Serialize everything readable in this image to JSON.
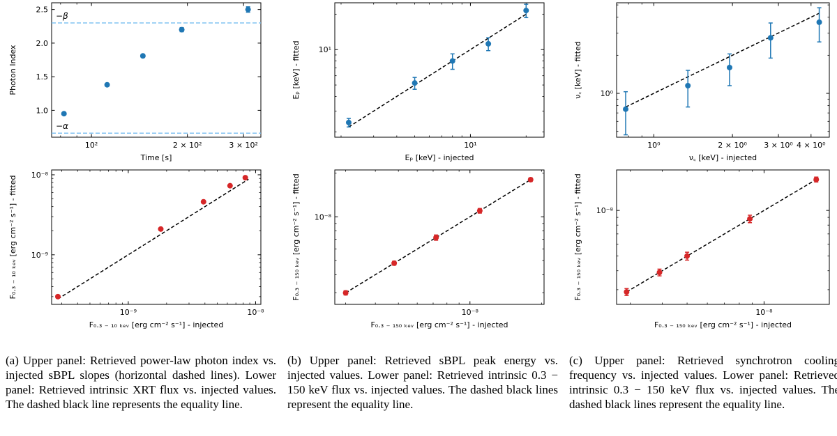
{
  "chart_data": [
    {
      "id": "a-upper",
      "type": "scatter",
      "xscale": "log",
      "yscale": "linear",
      "xlabel": "Time [s]",
      "ylabel": "Photon Index",
      "xlim": [
        75,
        340
      ],
      "ylim": [
        0.6,
        2.6
      ],
      "xticks": [
        {
          "v": 100,
          "t": "10²"
        },
        {
          "v": 200,
          "t": "2 × 10²"
        },
        {
          "v": 300,
          "t": "3 × 10²"
        }
      ],
      "yticks": [
        {
          "v": 1.0,
          "t": "1.0"
        },
        {
          "v": 1.5,
          "t": "1.5"
        },
        {
          "v": 2.0,
          "t": "2.0"
        },
        {
          "v": 2.5,
          "t": "2.5"
        }
      ],
      "color": "#1f77b4",
      "x": [
        82,
        112,
        145,
        192,
        310
      ],
      "y": [
        0.95,
        1.38,
        1.81,
        2.2,
        2.5
      ],
      "yerr": [
        0,
        0.02,
        0.02,
        0.03,
        0.04
      ],
      "hlines": [
        {
          "y": 2.3,
          "label": "−β",
          "color": "#77bdf0"
        },
        {
          "y": 0.66,
          "label": "−α",
          "color": "#77bdf0"
        }
      ]
    },
    {
      "id": "b-upper",
      "type": "scatter",
      "xscale": "log",
      "yscale": "log",
      "xlabel": "Eₚ [keV] - injected",
      "ylabel": "Eₚ [keV] - fitted",
      "xlim": [
        1.85,
        25
      ],
      "ylim": [
        1.8,
        25
      ],
      "xticks": [
        {
          "v": 10,
          "t": "10¹"
        }
      ],
      "yticks": [
        {
          "v": 10,
          "t": "10¹"
        }
      ],
      "color": "#1f77b4",
      "x": [
        2.2,
        5.0,
        8.0,
        12.5,
        20.0
      ],
      "y": [
        2.4,
        5.2,
        8.0,
        11.2,
        21.5
      ],
      "yerr": [
        0.2,
        0.6,
        1.2,
        1.4,
        2.8
      ],
      "line": [
        [
          2.2,
          2.2
        ],
        [
          20.0,
          20.0
        ]
      ]
    },
    {
      "id": "c-upper",
      "type": "scatter",
      "xscale": "log",
      "yscale": "log",
      "xlabel": "ν꜀ [keV] - injected",
      "ylabel": "ν꜀ [keV] - fitted",
      "xlim": [
        0.72,
        4.7
      ],
      "ylim": [
        0.45,
        5.2
      ],
      "xticks": [
        {
          "v": 1.0,
          "t": "10⁰"
        },
        {
          "v": 2.0,
          "t": "2 × 10⁰"
        },
        {
          "v": 3.0,
          "t": "3 × 10⁰"
        },
        {
          "v": 4.0,
          "t": "4 × 10⁰"
        }
      ],
      "yticks": [
        {
          "v": 1.0,
          "t": "10⁰"
        }
      ],
      "color": "#1f77b4",
      "x": [
        0.78,
        1.35,
        1.95,
        2.8,
        4.3
      ],
      "y": [
        0.75,
        1.15,
        1.6,
        2.75,
        3.65
      ],
      "yerr": [
        0.28,
        0.37,
        0.45,
        0.85,
        1.1
      ],
      "line": [
        [
          0.78,
          0.78
        ],
        [
          4.3,
          4.3
        ]
      ]
    },
    {
      "id": "a-lower",
      "type": "scatter",
      "xscale": "log",
      "yscale": "log",
      "xlabel": "F₀.₃ ₋ ₁₀ ₖₑᵥ [erg cm⁻² s⁻¹] - injected",
      "ylabel": "F₀.₃ ₋ ₁₀ ₖₑᵥ [erg cm⁻² s⁻¹] - fitted",
      "xlim": [
        2.5e-10,
        1.1e-08
      ],
      "ylim": [
        2.4e-10,
        1.15e-08
      ],
      "xticks": [
        {
          "v": 1e-09,
          "t": "10⁻⁹"
        },
        {
          "v": 1e-08,
          "t": "10⁻⁸"
        }
      ],
      "yticks": [
        {
          "v": 1e-09,
          "t": "10⁻⁹"
        },
        {
          "v": 1e-08,
          "t": "10⁻⁸"
        }
      ],
      "color": "#d62728",
      "x": [
        2.8e-10,
        1.8e-09,
        3.9e-09,
        6.3e-09,
        8.3e-09
      ],
      "y": [
        3e-10,
        2.1e-09,
        4.6e-09,
        7.3e-09,
        9.2e-09
      ],
      "yerr": [
        0,
        0,
        0,
        0,
        0
      ],
      "line": [
        [
          2.8e-10,
          2.8e-10
        ],
        [
          8.8e-09,
          8.8e-09
        ]
      ]
    },
    {
      "id": "b-lower",
      "type": "scatter",
      "xscale": "log",
      "yscale": "log",
      "xlabel": "F₀.₃ ₋ ₁₅₀ ₖₑᵥ [erg cm⁻² s⁻¹] - injected",
      "ylabel": "F₀.₃ ₋ ₁₅₀ ₖₑᵥ [erg cm⁻² s⁻¹] - fitted",
      "xlim": [
        2.7e-09,
        2.05e-08
      ],
      "ylim": [
        2.5e-09,
        2.1e-08
      ],
      "xticks": [
        {
          "v": 1e-08,
          "t": "10⁻⁸"
        }
      ],
      "yticks": [
        {
          "v": 1e-08,
          "t": "10⁻⁸"
        }
      ],
      "color": "#d62728",
      "x": [
        3e-09,
        4.8e-09,
        7.2e-09,
        1.1e-08,
        1.8e-08
      ],
      "y": [
        3e-09,
        4.8e-09,
        7.2e-09,
        1.1e-08,
        1.8e-08
      ],
      "yerr": [
        1e-10,
        1.5e-10,
        3e-10,
        4e-10,
        5e-10
      ],
      "line": [
        [
          3e-09,
          3e-09
        ],
        [
          1.8e-08,
          1.8e-08
        ]
      ]
    },
    {
      "id": "c-lower",
      "type": "scatter",
      "xscale": "log",
      "yscale": "log",
      "xlabel": "F₀.₃ ₋ ₁₅₀ ₖₑᵥ [erg cm⁻² s⁻¹] - injected",
      "ylabel": "F₀.₃ ₋ ₁₅₀ ₖₑᵥ [erg cm⁻² s⁻¹] - fitted",
      "xlim": [
        2.65e-09,
        1.8e-08
      ],
      "ylim": [
        2.4e-09,
        1.85e-08
      ],
      "xticks": [
        {
          "v": 1e-08,
          "t": "10⁻⁸"
        }
      ],
      "yticks": [
        {
          "v": 1e-08,
          "t": "10⁻⁸"
        }
      ],
      "color": "#d62728",
      "x": [
        2.9e-09,
        3.9e-09,
        5e-09,
        8.8e-09,
        1.6e-08
      ],
      "y": [
        2.9e-09,
        3.9e-09,
        5e-09,
        8.8e-09,
        1.6e-08
      ],
      "yerr": [
        1.5e-10,
        2e-10,
        3e-10,
        5e-10,
        6e-10
      ],
      "line": [
        [
          2.9e-09,
          2.9e-09
        ],
        [
          1.6e-08,
          1.6e-08
        ]
      ]
    }
  ],
  "captions": {
    "a": "(a) Upper panel: Retrieved power-law photon index vs. injected sBPL slopes (horizontal dashed lines). Lower panel: Retrieved intrinsic XRT flux vs. injected values. The dashed black line represents the equality line.",
    "b": "(b) Upper panel: Retrieved sBPL peak energy vs. injected values. Lower panel: Retrieved intrinsic 0.3 − 150 keV flux vs. injected values. The dashed black lines represent the equality line.",
    "c": "(c) Upper panel: Retrieved synchrotron cooling frequency vs. injected values. Lower panel: Retrieved intrinsic 0.3 − 150 keV flux vs. injected values. The dashed black lines represent the equality line."
  }
}
